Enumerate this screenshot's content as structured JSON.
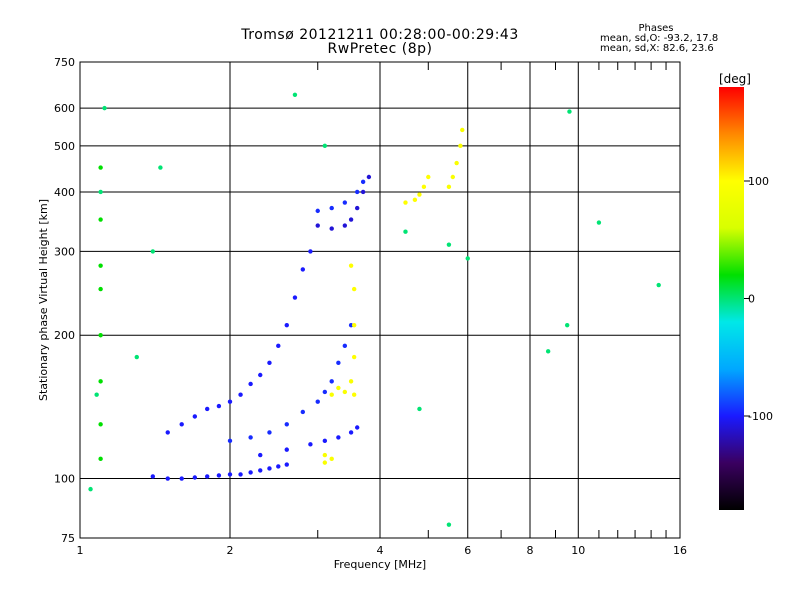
{
  "chart_data": {
    "type": "scatter",
    "title": "Tromsø 20121211 00:28:00-00:29:43",
    "subtitle": "RwPretec (8p)",
    "stats": {
      "heading": "Phases",
      "line1": "mean, sd,O: -93.2, 17.8",
      "line2": "mean, sd,X:  82.6, 23.6"
    },
    "xlabel": "Frequency [MHz]",
    "ylabel": "Stationary phase Virtual Height [km]",
    "xscale": "log",
    "yscale": "log",
    "xlim": [
      1,
      16
    ],
    "ylim": [
      75,
      750
    ],
    "xticks": [
      1,
      2,
      4,
      6,
      8,
      10,
      16
    ],
    "xminor": [
      3,
      5,
      7,
      9
    ],
    "yticks": [
      75,
      100,
      200,
      300,
      400,
      500,
      600,
      750
    ],
    "grid": true,
    "colorbar": {
      "label": "[deg]",
      "range": [
        -180,
        180
      ],
      "ticks": [
        100,
        0,
        -100
      ],
      "colors": [
        "#000000",
        "#3a0060",
        "#1a1aff",
        "#00a8ff",
        "#00e8e8",
        "#00e000",
        "#d8ff00",
        "#ffff00",
        "#ff8800",
        "#ff0000"
      ]
    },
    "series": [
      {
        "values": [
          [
            1.4,
            101
          ],
          [
            1.5,
            100
          ],
          [
            1.6,
            100
          ],
          [
            1.7,
            100.5
          ],
          [
            1.8,
            101
          ],
          [
            1.9,
            101.5
          ],
          [
            2.0,
            102
          ],
          [
            2.1,
            102
          ],
          [
            2.2,
            103
          ],
          [
            2.3,
            104
          ],
          [
            2.4,
            105
          ],
          [
            2.5,
            106
          ],
          [
            2.6,
            107
          ]
        ],
        "phase": -100
      },
      {
        "values": [
          [
            1.5,
            125
          ],
          [
            1.6,
            130
          ],
          [
            1.7,
            135
          ],
          [
            1.8,
            140
          ],
          [
            1.9,
            142
          ],
          [
            2.0,
            145
          ],
          [
            2.1,
            150
          ],
          [
            2.2,
            158
          ],
          [
            2.3,
            165
          ],
          [
            2.4,
            175
          ],
          [
            2.5,
            190
          ],
          [
            2.6,
            210
          ],
          [
            2.7,
            240
          ],
          [
            2.8,
            275
          ],
          [
            2.9,
            300
          ]
        ],
        "phase": -100
      },
      {
        "values": [
          [
            2.0,
            120
          ],
          [
            2.2,
            122
          ],
          [
            2.4,
            125
          ],
          [
            2.6,
            130
          ],
          [
            2.8,
            138
          ],
          [
            3.0,
            145
          ],
          [
            3.1,
            152
          ],
          [
            3.2,
            160
          ],
          [
            3.3,
            175
          ],
          [
            3.4,
            190
          ],
          [
            3.5,
            210
          ]
        ],
        "phase": -95
      },
      {
        "values": [
          [
            2.3,
            112
          ],
          [
            2.6,
            115
          ],
          [
            2.9,
            118
          ],
          [
            3.1,
            120
          ],
          [
            3.3,
            122
          ],
          [
            3.5,
            125
          ],
          [
            3.6,
            128
          ]
        ],
        "phase": -100
      },
      {
        "values": [
          [
            3.0,
            340
          ],
          [
            3.2,
            335
          ],
          [
            3.4,
            340
          ],
          [
            3.5,
            350
          ],
          [
            3.6,
            370
          ],
          [
            3.7,
            400
          ],
          [
            3.8,
            430
          ]
        ],
        "phase": -110
      },
      {
        "values": [
          [
            3.0,
            365
          ],
          [
            3.2,
            370
          ],
          [
            3.4,
            380
          ],
          [
            3.6,
            400
          ],
          [
            3.7,
            420
          ]
        ],
        "phase": -95
      },
      {
        "values": [
          [
            3.55,
            150
          ],
          [
            3.55,
            180
          ],
          [
            3.55,
            210
          ],
          [
            3.55,
            250
          ],
          [
            3.5,
            280
          ]
        ],
        "phase": 100
      },
      {
        "values": [
          [
            3.2,
            150
          ],
          [
            3.3,
            155
          ],
          [
            3.4,
            152
          ],
          [
            3.5,
            160
          ]
        ],
        "phase": 95
      },
      {
        "values": [
          [
            3.1,
            112
          ],
          [
            3.2,
            110
          ],
          [
            3.1,
            108
          ]
        ],
        "phase": 95
      },
      {
        "values": [
          [
            4.5,
            380
          ],
          [
            4.7,
            385
          ],
          [
            4.8,
            395
          ],
          [
            4.9,
            410
          ],
          [
            5.0,
            430
          ]
        ],
        "phase": 100
      },
      {
        "values": [
          [
            5.5,
            410
          ],
          [
            5.6,
            430
          ],
          [
            5.7,
            460
          ],
          [
            5.8,
            500
          ],
          [
            5.85,
            540
          ]
        ],
        "phase": 95
      },
      {
        "values": [
          [
            1.1,
            110
          ],
          [
            1.1,
            130
          ],
          [
            1.1,
            160
          ],
          [
            1.1,
            200
          ],
          [
            1.1,
            250
          ],
          [
            1.1,
            280
          ],
          [
            1.1,
            350
          ],
          [
            1.1,
            450
          ]
        ],
        "phase": 20
      },
      {
        "values": [
          [
            1.05,
            95
          ],
          [
            1.08,
            150
          ],
          [
            1.1,
            400
          ],
          [
            1.12,
            600
          ],
          [
            1.3,
            180
          ],
          [
            1.4,
            300
          ],
          [
            1.45,
            450
          ],
          [
            2.7,
            640
          ],
          [
            3.1,
            500
          ],
          [
            4.5,
            330
          ],
          [
            5.5,
            310
          ],
          [
            5.5,
            80
          ],
          [
            9.6,
            590
          ],
          [
            9.5,
            210
          ],
          [
            11,
            345
          ],
          [
            14.5,
            255
          ],
          [
            4.8,
            140
          ],
          [
            6.0,
            290
          ],
          [
            8.7,
            185
          ]
        ],
        "phase": 0
      }
    ]
  }
}
